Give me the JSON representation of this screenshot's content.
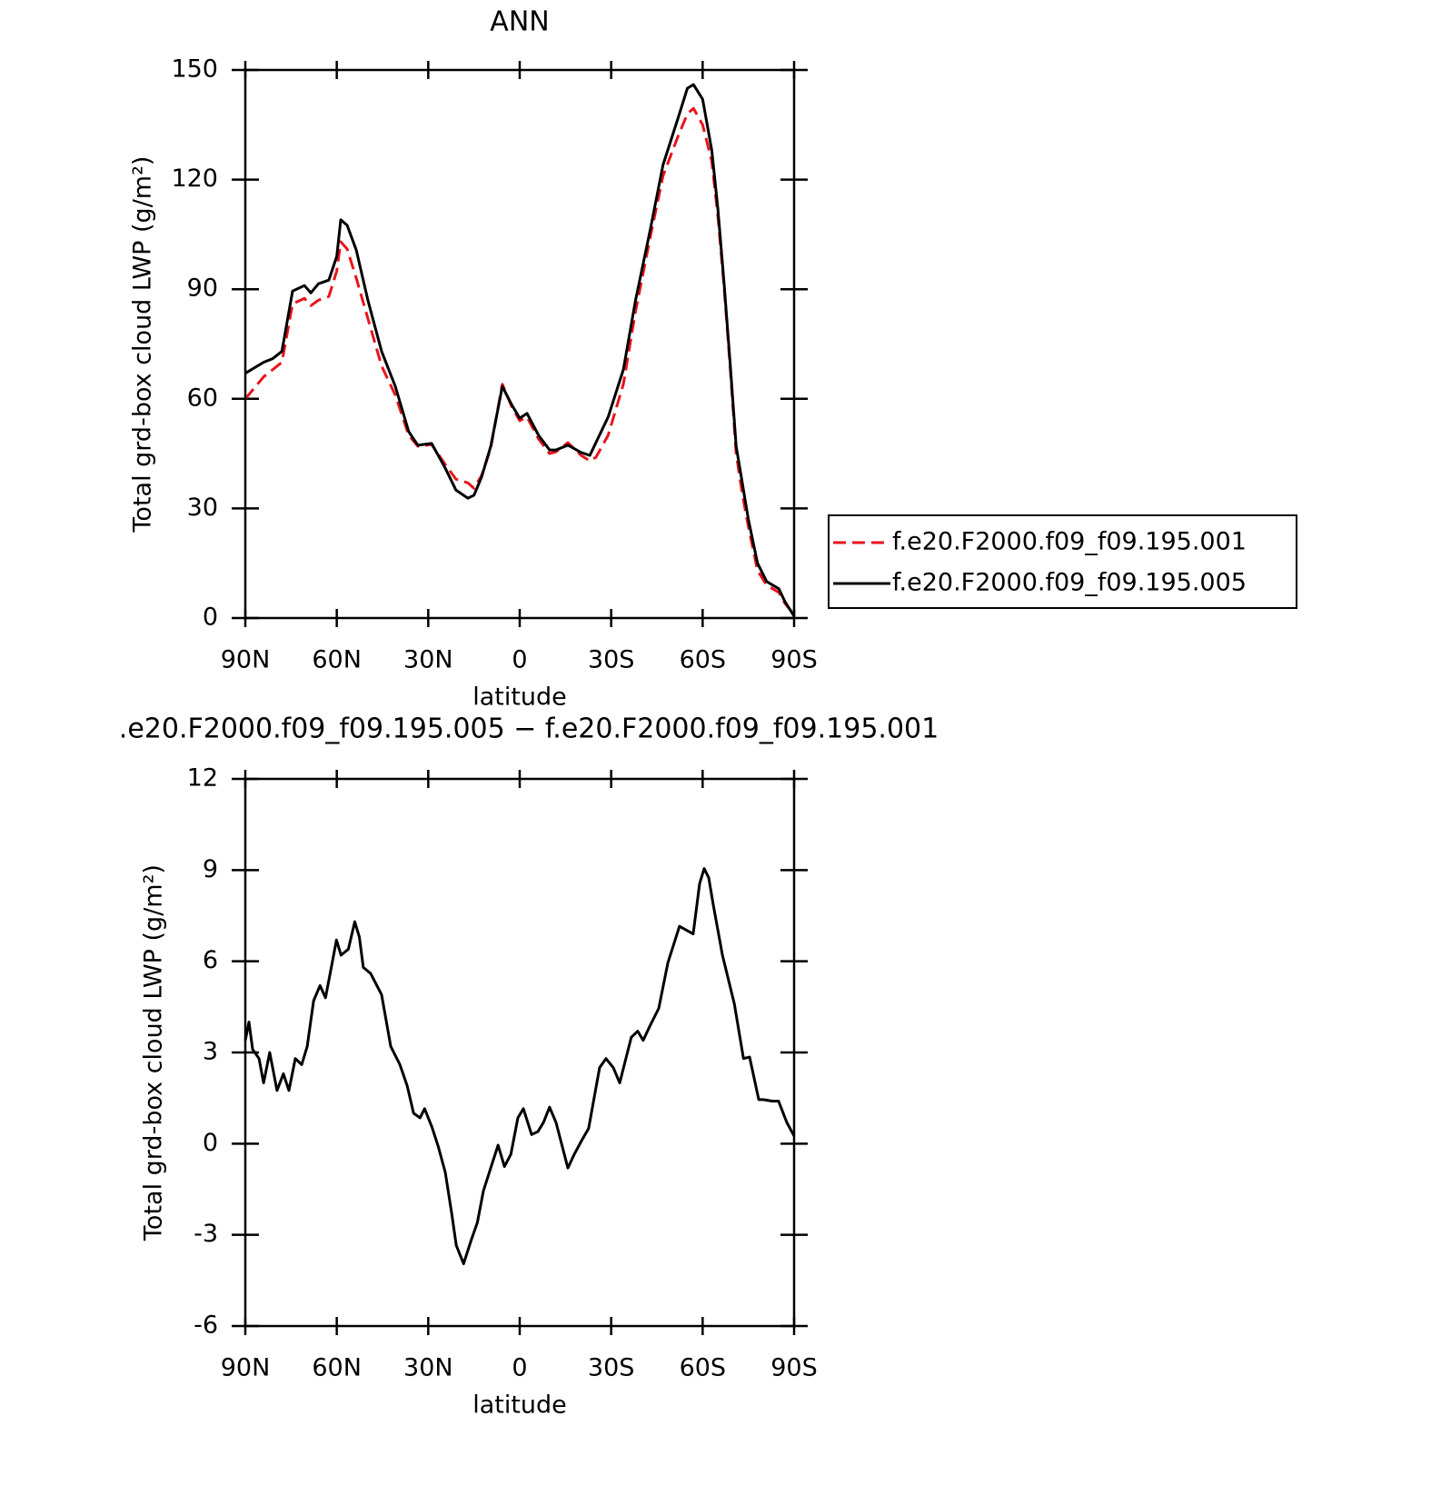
{
  "chart_data": [
    {
      "type": "line",
      "title": "ANN",
      "xlabel": "latitude",
      "ylabel": "Total grd-box cloud LWP (g/m²)",
      "x": [
        90,
        84,
        81,
        78,
        74.5,
        70.6,
        68.5,
        66,
        62.6,
        60,
        58.7,
        56.6,
        53.6,
        49.8,
        45.3,
        40.8,
        36.4,
        33.4,
        28.9,
        24.4,
        20.9,
        17,
        15,
        12.5,
        9.5,
        5.7,
        2.7,
        0,
        -2.4,
        -6.2,
        -9.8,
        -11.9,
        -15.8,
        -20.2,
        -23,
        -25,
        -29,
        -34,
        -38,
        -43,
        -47,
        -52,
        -55,
        -57,
        -60,
        -63,
        -65,
        -67,
        -69,
        -71,
        -73,
        -75,
        -78,
        -81,
        -85,
        -87,
        -90
      ],
      "series": [
        {
          "name": "f.e20.F2000.f09_f09.195.001",
          "color": "#e8141c",
          "line_style": "dashed",
          "values": [
            60,
            66,
            68,
            70,
            86,
            87.5,
            85.5,
            87,
            88,
            95,
            103,
            101,
            93,
            82,
            69,
            61,
            50,
            47,
            47.5,
            42,
            38,
            37,
            35.5,
            39,
            46.5,
            64,
            58,
            54,
            55,
            49,
            45,
            45.5,
            48,
            44.5,
            43,
            44,
            50,
            64,
            84,
            105,
            121,
            132,
            138,
            139.5,
            135,
            125,
            110,
            91,
            69,
            45,
            34,
            25,
            13,
            9,
            7,
            4,
            1
          ]
        },
        {
          "name": "f.e20.F2000.f09_f09.195.005",
          "color": "#000000",
          "line_style": "solid",
          "values": [
            67,
            70,
            71,
            73,
            89.5,
            91,
            89,
            91.5,
            92.5,
            99,
            109,
            107.5,
            100.7,
            87,
            73,
            63.4,
            51,
            47.3,
            47.8,
            41,
            35,
            32.8,
            33.6,
            38.6,
            47,
            63.4,
            58.5,
            54.7,
            56,
            50,
            46,
            46,
            47.3,
            45.3,
            44.5,
            48,
            55,
            68,
            87,
            107,
            124,
            137,
            145,
            146,
            142,
            128,
            112,
            92,
            70,
            47,
            37,
            27,
            15,
            10,
            8,
            4.5,
            0.5
          ]
        }
      ],
      "xlim": [
        90,
        -90
      ],
      "xticks": [
        {
          "value": 90,
          "label": "90N"
        },
        {
          "value": 60,
          "label": "60N"
        },
        {
          "value": 30,
          "label": "30N"
        },
        0,
        {
          "value": -30,
          "label": "30S"
        },
        {
          "value": -60,
          "label": "60S"
        },
        {
          "value": -90,
          "label": "90S"
        }
      ],
      "ylim": [
        0,
        150
      ],
      "yticks": [
        0,
        30,
        60,
        90,
        120,
        150
      ],
      "legend_position": "right"
    },
    {
      "type": "line",
      "title": ".e20.F2000.f09_f09.195.005 − f.e20.F2000.f09_f09.195.001",
      "xlabel": "latitude",
      "ylabel": "Total grd-box cloud LWP (g/m²)",
      "x": [
        90,
        88.8,
        87.6,
        85.5,
        84,
        82,
        79.6,
        77.5,
        75.7,
        73.6,
        71.5,
        69.7,
        67.6,
        65.5,
        63.7,
        61.6,
        60.1,
        58.6,
        56.2,
        54.1,
        52.6,
        51.3,
        48.9,
        45.3,
        42.3,
        39.3,
        36.9,
        34.8,
        32.7,
        31.2,
        28.8,
        26.7,
        24.4,
        22.3,
        20.8,
        18.4,
        16,
        13.9,
        11.9,
        9.5,
        7.1,
        5,
        2.9,
        0.6,
        -1.2,
        -3.9,
        -6,
        -7.8,
        -9.8,
        -11.9,
        -15.8,
        -17.9,
        -20.3,
        -22.6,
        -26.2,
        -28.3,
        -30.7,
        -32.8,
        -36.6,
        -38.7,
        -40.5,
        -42.6,
        -45.6,
        -48.6,
        -52.4,
        -56.9,
        -59,
        -60.5,
        -62,
        -63.5,
        -66.5,
        -70.4,
        -73.4,
        -75.4,
        -78.4,
        -79.9,
        -82.8,
        -84.9,
        -87.6,
        -90
      ],
      "series": [
        {
          "color": "#000000",
          "line_style": "solid",
          "values": [
            3.4,
            4.0,
            3.1,
            2.8,
            2.0,
            3.0,
            1.75,
            2.3,
            1.75,
            2.8,
            2.6,
            3.2,
            4.7,
            5.2,
            4.8,
            5.9,
            6.7,
            6.2,
            6.4,
            7.3,
            6.8,
            5.8,
            5.6,
            4.9,
            3.2,
            2.6,
            1.9,
            1.0,
            0.85,
            1.15,
            0.55,
            -0.1,
            -0.95,
            -2.3,
            -3.35,
            -3.95,
            -3.2,
            -2.6,
            -1.55,
            -0.8,
            -0.05,
            -0.75,
            -0.35,
            0.85,
            1.15,
            0.3,
            0.4,
            0.7,
            1.2,
            0.7,
            -0.8,
            -0.35,
            0.1,
            0.5,
            2.5,
            2.8,
            2.5,
            2.0,
            3.5,
            3.7,
            3.4,
            3.85,
            4.45,
            5.95,
            7.15,
            6.9,
            8.55,
            9.05,
            8.75,
            7.85,
            6.2,
            4.6,
            2.8,
            2.85,
            1.45,
            1.45,
            1.4,
            1.4,
            0.7,
            0.25
          ]
        }
      ],
      "xlim": [
        90,
        -90
      ],
      "xticks": [
        {
          "value": 90,
          "label": "90N"
        },
        {
          "value": 60,
          "label": "60N"
        },
        {
          "value": 30,
          "label": "30N"
        },
        0,
        {
          "value": -30,
          "label": "30S"
        },
        {
          "value": -60,
          "label": "60S"
        },
        {
          "value": -90,
          "label": "90S"
        }
      ],
      "ylim": [
        -6,
        12
      ],
      "yticks": [
        -6,
        -3,
        0,
        3,
        6,
        9,
        12
      ]
    }
  ]
}
